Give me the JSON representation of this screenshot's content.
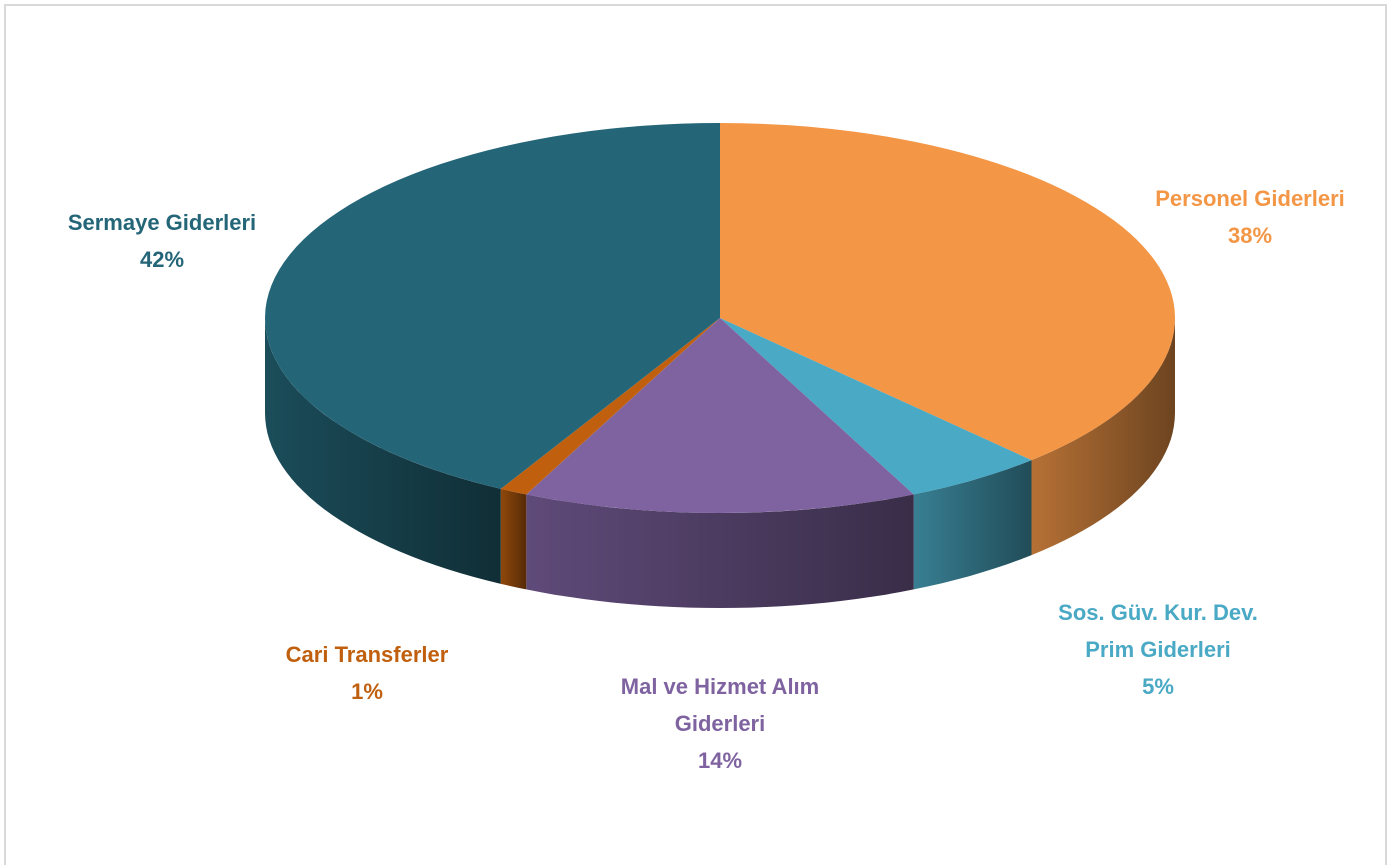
{
  "chart_data": {
    "type": "pie",
    "categories": [
      "Personel Giderleri",
      "Sos. Güv. Kur. Dev. Prim Giderleri",
      "Mal ve Hizmet Alım Giderleri",
      "Cari Transferler",
      "Sermaye Giderleri"
    ],
    "values": [
      38,
      5,
      14,
      1,
      42
    ],
    "value_labels": [
      "38%",
      "5%",
      "14%",
      "1%",
      "42%"
    ],
    "colors": [
      "#f39646",
      "#4aa9c4",
      "#7f63a1",
      "#c0600f",
      "#246678"
    ]
  }
}
